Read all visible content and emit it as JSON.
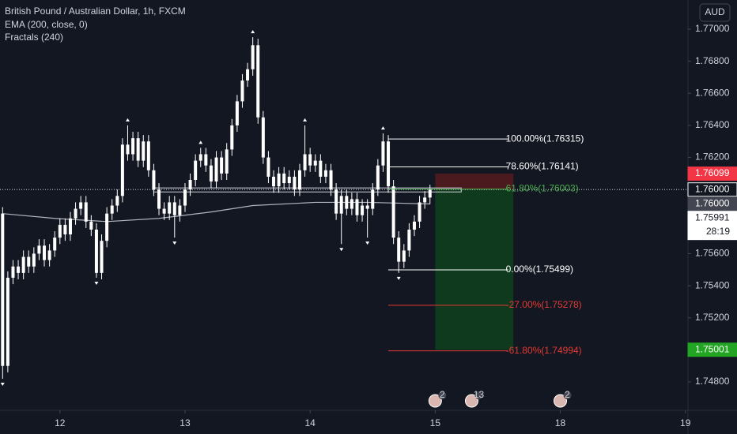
{
  "chart_data": {
    "type": "candlestick",
    "title": "British Pound / Australian Dollar, 1h, FXCM",
    "indicators": [
      "EMA (200, close, 0)",
      "Fractals (240)"
    ],
    "currency": "AUD",
    "x": [
      0,
      1,
      2,
      3,
      4,
      5,
      6,
      7,
      8,
      9,
      10,
      11,
      12,
      13,
      14,
      15,
      16,
      17,
      18,
      19,
      20,
      21,
      22,
      23,
      24,
      25,
      26,
      27,
      28,
      29,
      30,
      31,
      32,
      33,
      34,
      35,
      36,
      37,
      38,
      39,
      40,
      41,
      42,
      43,
      44,
      45,
      46,
      47,
      48,
      49,
      50,
      51,
      52,
      53,
      54,
      55,
      56,
      57,
      58,
      59,
      60,
      61,
      62,
      63,
      64,
      65,
      66,
      67,
      68,
      69,
      70,
      71,
      72,
      73,
      74,
      75,
      76,
      77,
      78,
      79,
      80,
      81,
      82
    ],
    "open": [
      1.7585,
      1.749,
      1.7545,
      1.7552,
      1.7548,
      1.7558,
      1.7552,
      1.756,
      1.7565,
      1.7556,
      1.7562,
      1.757,
      1.7578,
      1.7572,
      1.7582,
      1.7588,
      1.7592,
      1.758,
      1.7575,
      1.7548,
      1.7568,
      1.7585,
      1.759,
      1.7596,
      1.7628,
      1.7622,
      1.7632,
      1.7618,
      1.763,
      1.7612,
      1.76,
      1.7588,
      1.7585,
      1.7592,
      1.7584,
      1.759,
      1.76,
      1.7606,
      1.7618,
      1.7622,
      1.7615,
      1.7605,
      1.762,
      1.761,
      1.7625,
      1.764,
      1.7655,
      1.7668,
      1.7675,
      1.769,
      1.7645,
      1.762,
      1.7608,
      1.7602,
      1.761,
      1.7604,
      1.7608,
      1.76,
      1.7612,
      1.7622,
      1.7615,
      1.7618,
      1.7608,
      1.7612,
      1.76,
      1.7585,
      1.7596,
      1.7588,
      1.7594,
      1.7584,
      1.759,
      1.7588,
      1.76,
      1.7615,
      1.763,
      1.7602,
      1.757,
      1.7555,
      1.7562,
      1.7575,
      1.758,
      1.7592,
      1.7595
    ],
    "high": [
      1.7589,
      1.7549,
      1.7556,
      1.7556,
      1.7562,
      1.7562,
      1.7564,
      1.7569,
      1.7569,
      1.7566,
      1.7574,
      1.7582,
      1.7582,
      1.7586,
      1.7592,
      1.7596,
      1.7596,
      1.7584,
      1.7579,
      1.7572,
      1.7589,
      1.7594,
      1.76,
      1.7632,
      1.764,
      1.7636,
      1.7636,
      1.7634,
      1.7634,
      1.7616,
      1.7604,
      1.7592,
      1.7596,
      1.7596,
      1.7594,
      1.7604,
      1.761,
      1.7622,
      1.7626,
      1.7626,
      1.7619,
      1.7624,
      1.7624,
      1.7629,
      1.7644,
      1.7659,
      1.7672,
      1.7679,
      1.7695,
      1.7694,
      1.7649,
      1.7624,
      1.7612,
      1.7614,
      1.7614,
      1.7612,
      1.7612,
      1.7616,
      1.764,
      1.7626,
      1.7622,
      1.7622,
      1.7616,
      1.7616,
      1.7604,
      1.76,
      1.76,
      1.7598,
      1.7598,
      1.7594,
      1.7594,
      1.7604,
      1.7619,
      1.7635,
      1.7634,
      1.7606,
      1.7574,
      1.7566,
      1.7579,
      1.7584,
      1.7596,
      1.7599,
      1.7603
    ],
    "low": [
      1.7482,
      1.7486,
      1.7541,
      1.7544,
      1.7544,
      1.7548,
      1.7548,
      1.7556,
      1.7552,
      1.7552,
      1.7558,
      1.7566,
      1.7568,
      1.7568,
      1.7578,
      1.7584,
      1.7576,
      1.7571,
      1.7545,
      1.7544,
      1.7564,
      1.7581,
      1.7586,
      1.7592,
      1.7618,
      1.7618,
      1.7614,
      1.7614,
      1.7608,
      1.7596,
      1.7584,
      1.7581,
      1.7581,
      1.757,
      1.758,
      1.7586,
      1.7596,
      1.7602,
      1.7614,
      1.7611,
      1.7601,
      1.7601,
      1.7606,
      1.7606,
      1.7621,
      1.7636,
      1.7651,
      1.7664,
      1.7671,
      1.7641,
      1.7616,
      1.7604,
      1.7598,
      1.7598,
      1.76,
      1.76,
      1.7596,
      1.7596,
      1.7608,
      1.7611,
      1.7611,
      1.7604,
      1.7604,
      1.7596,
      1.7581,
      1.7566,
      1.7584,
      1.7584,
      1.758,
      1.758,
      1.757,
      1.7584,
      1.7596,
      1.7611,
      1.7598,
      1.7566,
      1.7548,
      1.7551,
      1.7558,
      1.7571,
      1.7576,
      1.7588,
      1.7591
    ],
    "close": [
      1.749,
      1.7545,
      1.7552,
      1.7548,
      1.7558,
      1.7552,
      1.756,
      1.7565,
      1.7556,
      1.7562,
      1.757,
      1.7578,
      1.7572,
      1.7582,
      1.7588,
      1.7592,
      1.758,
      1.7575,
      1.7548,
      1.7568,
      1.7585,
      1.759,
      1.7596,
      1.7628,
      1.7622,
      1.7632,
      1.7618,
      1.763,
      1.7612,
      1.76,
      1.7588,
      1.7585,
      1.7592,
      1.7584,
      1.759,
      1.76,
      1.7606,
      1.7618,
      1.7622,
      1.7615,
      1.7605,
      1.762,
      1.761,
      1.7625,
      1.764,
      1.7655,
      1.7668,
      1.7675,
      1.769,
      1.7645,
      1.762,
      1.7608,
      1.7602,
      1.761,
      1.7604,
      1.7608,
      1.76,
      1.7612,
      1.7622,
      1.7615,
      1.7618,
      1.7608,
      1.7612,
      1.76,
      1.7585,
      1.7596,
      1.7588,
      1.7594,
      1.7584,
      1.759,
      1.7588,
      1.76,
      1.7615,
      1.763,
      1.7602,
      1.757,
      1.7555,
      1.7562,
      1.7575,
      1.758,
      1.7592,
      1.7595,
      1.76
    ],
    "up_color": "#ffffff",
    "down_color": "#ffffff",
    "xlim": [
      -0.5,
      131.5
    ],
    "xticks": [
      {
        "value": 11,
        "label": "12"
      },
      {
        "value": 35,
        "label": "13"
      },
      {
        "value": 59,
        "label": "14"
      },
      {
        "value": 83,
        "label": "15"
      },
      {
        "value": 107,
        "label": "18"
      },
      {
        "value": 131,
        "label": "19"
      }
    ],
    "ylim": [
      1.74623,
      1.77182
    ],
    "yticks": [
      {
        "value": 1.77,
        "label": "1.77000"
      },
      {
        "value": 1.768,
        "label": "1.76800"
      },
      {
        "value": 1.766,
        "label": "1.76600"
      },
      {
        "value": 1.764,
        "label": "1.76400"
      },
      {
        "value": 1.762,
        "label": "1.76200"
      },
      {
        "value": 1.756,
        "label": "1.75600"
      },
      {
        "value": 1.754,
        "label": "1.75400"
      },
      {
        "value": 1.752,
        "label": "1.75200"
      },
      {
        "value": 1.748,
        "label": "1.74800"
      }
    ],
    "ema": {
      "color": "#b2b5be",
      "x": [
        0,
        10,
        20,
        30,
        40,
        48,
        60,
        70,
        82
      ],
      "values": [
        1.7585,
        1.7582,
        1.758,
        1.7582,
        1.7586,
        1.759,
        1.7592,
        1.7592,
        1.7591
      ]
    },
    "fractals": {
      "color": "#ffffff",
      "up": [
        24,
        38,
        48,
        58,
        73
      ],
      "down": [
        0,
        18,
        33,
        65,
        70,
        76
      ]
    },
    "fib": {
      "x": [
        74,
        97
      ],
      "levels": [
        {
          "value": 1.76315,
          "label": "100.00%(1.76315)",
          "color": "#ffffff"
        },
        {
          "value": 1.76141,
          "label": "78.60%(1.76141)",
          "color": "#ffffff"
        },
        {
          "value": 1.76003,
          "label": "61.80%(1.76003)",
          "color": "#4caf50"
        },
        {
          "value": 1.75499,
          "label": "0.00%(1.75499)",
          "color": "#ffffff"
        },
        {
          "value": 1.75278,
          "label": "-27.00%(1.75278)",
          "color": "#e53935"
        },
        {
          "value": 1.74994,
          "label": "-61.80%(1.74994)",
          "color": "#e53935"
        }
      ]
    },
    "position": {
      "x": [
        83,
        98
      ],
      "entry": 1.76,
      "stop": 1.76099,
      "target": 1.75001,
      "stop_color": "#4a1a1f",
      "target_color": "#103a1e"
    },
    "zone": {
      "x": [
        29,
        88
      ],
      "values": [
        1.7601,
        1.75985
      ]
    },
    "price_line": 1.76,
    "price_tags": [
      {
        "value": 1.76099,
        "label": "1.76099",
        "color": "#f23645",
        "text_color": "#ffffff"
      },
      {
        "value": 1.76,
        "label": "1.76000",
        "color": "#131722",
        "text_color": "#ffffff"
      },
      {
        "value": 1.76,
        "label": "1.76000",
        "color": "#434651",
        "text_color": "#ffffff"
      },
      {
        "value": 1.75991,
        "label": "1.75991",
        "color": "#ffffff",
        "text_color": "#131722",
        "sub": "28:19"
      },
      {
        "value": 1.75001,
        "label": "1.75001",
        "color": "#22a522",
        "text_color": "#ffffff"
      }
    ],
    "events": {
      "x": [
        83,
        90,
        107
      ],
      "counts": [
        2,
        13,
        2
      ]
    }
  }
}
